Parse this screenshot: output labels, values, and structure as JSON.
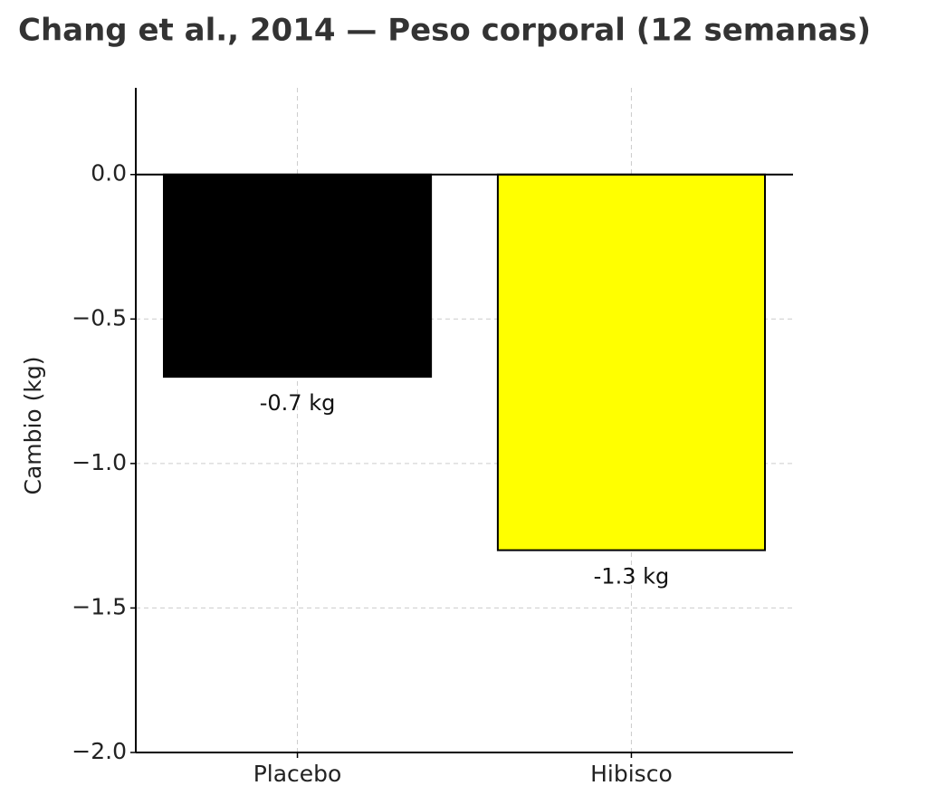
{
  "chart_data": {
    "type": "bar",
    "title": "Chang et al., 2014 — Peso corporal (12 semanas)",
    "y_label": "Cambio (kg)",
    "categories": [
      "Placebo",
      "Hibisco"
    ],
    "values": [
      -0.7,
      -1.3
    ],
    "value_labels": [
      "-0.7 kg",
      "-1.3 kg"
    ],
    "colors": [
      "#000000",
      "#ffff00"
    ],
    "ylim": [
      -2.0,
      0.3
    ],
    "yticks": [
      {
        "value": 0,
        "label": "0.0"
      },
      {
        "value": -0.5,
        "label": "−0.5"
      },
      {
        "value": -1.0,
        "label": "−1.0"
      },
      {
        "value": -1.5,
        "label": "−1.5"
      },
      {
        "value": -2.0,
        "label": "−2.0"
      }
    ],
    "grid": true
  }
}
